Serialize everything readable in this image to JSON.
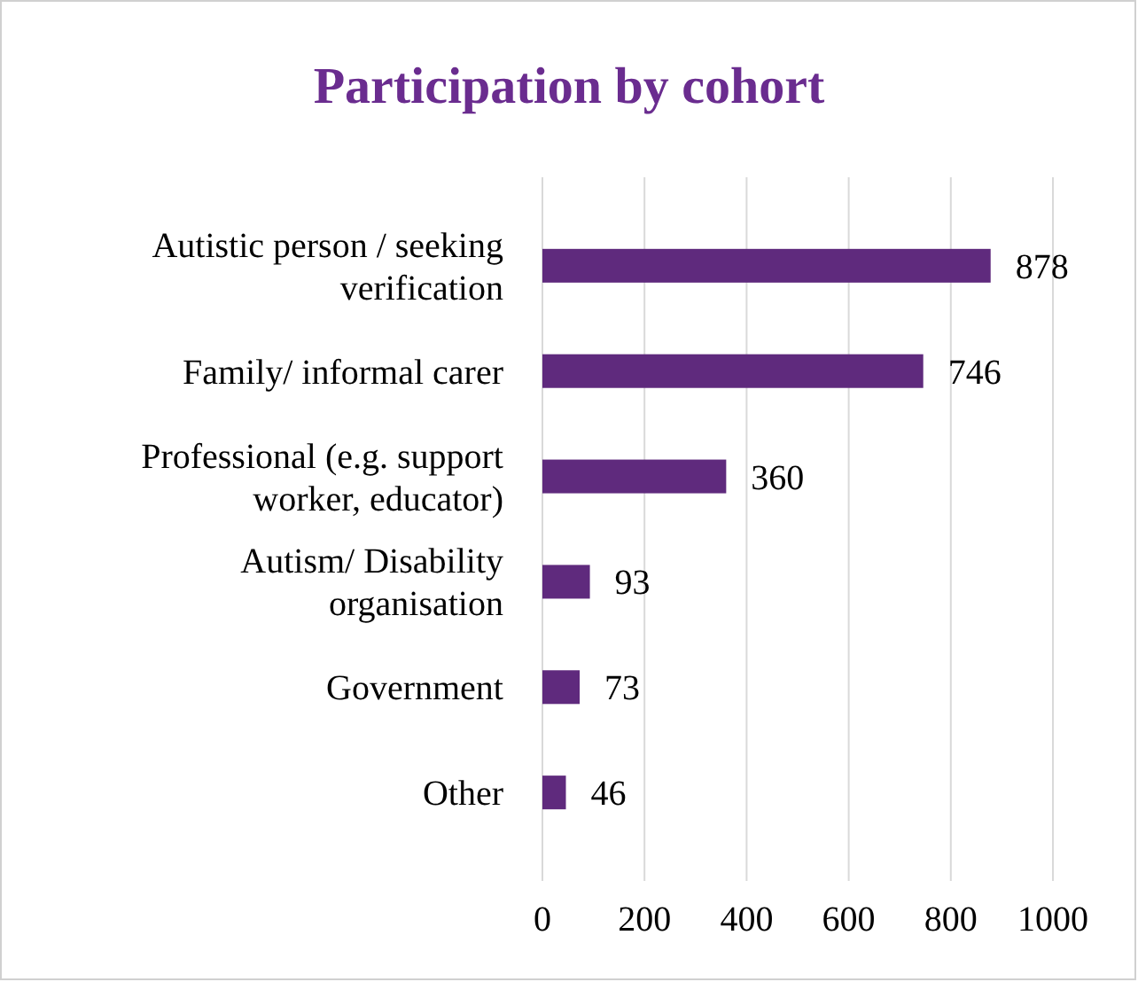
{
  "chart_data": {
    "type": "bar",
    "orientation": "horizontal",
    "title": "Participation by cohort",
    "categories": [
      "Autistic person / seeking verification",
      "Family/ informal carer",
      "Professional (e.g. support worker, educator)",
      "Autism/ Disability organisation",
      "Government",
      "Other"
    ],
    "values": [
      878,
      746,
      360,
      93,
      73,
      46
    ],
    "color": "#5f2a7d",
    "data_labels": true,
    "xlim": [
      0,
      1000
    ],
    "xticks": [
      0,
      200,
      400,
      600,
      800,
      1000
    ],
    "grid": "x"
  }
}
